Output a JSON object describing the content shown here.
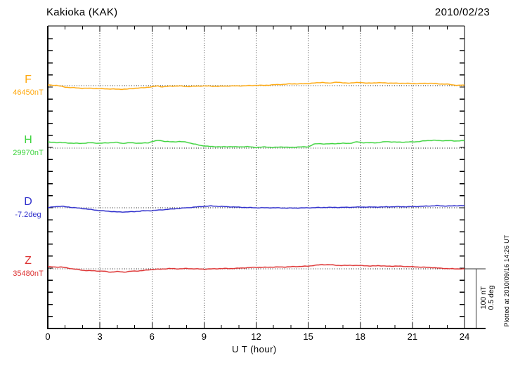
{
  "header": {
    "title": "Kakioka (KAK)",
    "date": "2010/02/23"
  },
  "axis": {
    "x_label": "U T (hour)",
    "x_ticks": [
      "0",
      "3",
      "6",
      "9",
      "12",
      "15",
      "18",
      "21",
      "24"
    ],
    "x_min": 0,
    "x_max": 24
  },
  "scale_bar": {
    "line1": "100 nT",
    "line2": "0.5 deg"
  },
  "footer_note": "Plotted at 2010/09/16 14:26 UT",
  "chart_data": {
    "type": "line",
    "title": "Kakioka (KAK) geomagnetic field variations 2010/02/23",
    "xlabel": "U T (hour)",
    "x_range": [
      0,
      24
    ],
    "grid": "dotted vertical gridlines every 3 hours; dotted horizontal baseline per channel",
    "legend_position": "left-of-plot channel labels",
    "scale": {
      "nT_per_division": 100,
      "deg_per_division": 0.5
    },
    "series": [
      {
        "name": "F",
        "label": "F",
        "unit": "nT",
        "baseline_label": "46450nT",
        "baseline_value": 46450,
        "color": "#ffaa11",
        "points": [
          [
            0,
            1
          ],
          [
            0.5,
            0.5
          ],
          [
            1,
            -2.5
          ],
          [
            1.5,
            -3.5
          ],
          [
            2,
            -4.5
          ],
          [
            2.5,
            -4.5
          ],
          [
            3,
            -5
          ],
          [
            3.5,
            -5.5
          ],
          [
            4,
            -6
          ],
          [
            4.5,
            -6
          ],
          [
            5,
            -4.5
          ],
          [
            5.5,
            -3.5
          ],
          [
            6,
            -2
          ],
          [
            6.3,
            -0.5
          ],
          [
            6.6,
            -2
          ],
          [
            7,
            -1
          ],
          [
            7.5,
            -0.5
          ],
          [
            8,
            -1.5
          ],
          [
            8.5,
            -1
          ],
          [
            9,
            -0.5
          ],
          [
            9.5,
            -1
          ],
          [
            10,
            -1
          ],
          [
            10.5,
            -0.5
          ],
          [
            11,
            -0.5
          ],
          [
            11.5,
            0
          ],
          [
            12,
            0.5
          ],
          [
            12.5,
            0.5
          ],
          [
            13,
            1.5
          ],
          [
            13.5,
            2
          ],
          [
            14,
            3
          ],
          [
            14.5,
            3
          ],
          [
            15,
            3.5
          ],
          [
            15.4,
            4.5
          ],
          [
            15.8,
            5.5
          ],
          [
            16.2,
            4
          ],
          [
            16.6,
            6
          ],
          [
            17,
            4.5
          ],
          [
            17.5,
            4.5
          ],
          [
            18,
            5.5
          ],
          [
            18.4,
            4
          ],
          [
            19,
            5
          ],
          [
            19.5,
            4.5
          ],
          [
            20,
            4
          ],
          [
            20.5,
            4
          ],
          [
            21,
            3.5
          ],
          [
            21.5,
            3.5
          ],
          [
            22,
            4
          ],
          [
            22.5,
            3
          ],
          [
            23,
            2.5
          ],
          [
            23.4,
            1
          ],
          [
            23.7,
            0.5
          ],
          [
            24,
            1
          ]
        ]
      },
      {
        "name": "H",
        "label": "H",
        "unit": "nT",
        "baseline_label": "29970nT",
        "baseline_value": 29970,
        "color": "#3fd43f",
        "points": [
          [
            0,
            10
          ],
          [
            0.5,
            9.5
          ],
          [
            1,
            9
          ],
          [
            1.5,
            8
          ],
          [
            2,
            8
          ],
          [
            2.5,
            9
          ],
          [
            3,
            8
          ],
          [
            3.5,
            9
          ],
          [
            4,
            9.5
          ],
          [
            4.3,
            8
          ],
          [
            4.8,
            9
          ],
          [
            5.3,
            8
          ],
          [
            5.8,
            9
          ],
          [
            6,
            11
          ],
          [
            6.4,
            13
          ],
          [
            6.8,
            11
          ],
          [
            7.2,
            10.5
          ],
          [
            7.6,
            11
          ],
          [
            8,
            10
          ],
          [
            8.4,
            7
          ],
          [
            8.8,
            4.5
          ],
          [
            9.2,
            3
          ],
          [
            9.6,
            2.5
          ],
          [
            10,
            2
          ],
          [
            10.5,
            2.5
          ],
          [
            11,
            2
          ],
          [
            11.5,
            2.5
          ],
          [
            12,
            1
          ],
          [
            12.5,
            2
          ],
          [
            13,
            1
          ],
          [
            13.5,
            2
          ],
          [
            14,
            1
          ],
          [
            14.5,
            2
          ],
          [
            15,
            2
          ],
          [
            15.3,
            6.5
          ],
          [
            15.6,
            7.5
          ],
          [
            16,
            7
          ],
          [
            16.5,
            7.5
          ],
          [
            17,
            8
          ],
          [
            17.4,
            8
          ],
          [
            17.8,
            10.5
          ],
          [
            18.2,
            9
          ],
          [
            18.6,
            9
          ],
          [
            19,
            9
          ],
          [
            19.5,
            11
          ],
          [
            20,
            10
          ],
          [
            20.5,
            10
          ],
          [
            21,
            10.5
          ],
          [
            21.4,
            11
          ],
          [
            21.8,
            12.5
          ],
          [
            22.2,
            13
          ],
          [
            22.6,
            12.5
          ],
          [
            23,
            12.5
          ],
          [
            23.5,
            12
          ],
          [
            24,
            12.5
          ]
        ]
      },
      {
        "name": "D",
        "label": "D",
        "unit": "deg",
        "baseline_label": "-7.2deg",
        "baseline_value": -7.2,
        "color": "#3030cc",
        "points": [
          [
            0,
            0
          ],
          [
            0.4,
            0.01
          ],
          [
            0.8,
            0.012
          ],
          [
            1.2,
            0.006
          ],
          [
            1.6,
            0
          ],
          [
            2,
            -0.006
          ],
          [
            2.5,
            -0.015
          ],
          [
            3,
            -0.024
          ],
          [
            3.5,
            -0.029
          ],
          [
            4,
            -0.035
          ],
          [
            4.5,
            -0.035
          ],
          [
            5,
            -0.032
          ],
          [
            5.5,
            -0.026
          ],
          [
            6,
            -0.024
          ],
          [
            6.5,
            -0.018
          ],
          [
            7,
            -0.012
          ],
          [
            7.5,
            -0.006
          ],
          [
            8,
            0
          ],
          [
            8.5,
            0.006
          ],
          [
            9,
            0.012
          ],
          [
            9.4,
            0.015
          ],
          [
            9.8,
            0.012
          ],
          [
            10.3,
            0.009
          ],
          [
            10.8,
            0.006
          ],
          [
            11.3,
            0.003
          ],
          [
            12,
            0
          ],
          [
            13,
            0
          ],
          [
            14,
            -0.003
          ],
          [
            15,
            0
          ],
          [
            16,
            0.003
          ],
          [
            17,
            0.003
          ],
          [
            18,
            0.006
          ],
          [
            19,
            0.006
          ],
          [
            20,
            0.009
          ],
          [
            20.5,
            0.009
          ],
          [
            21,
            0.009
          ],
          [
            21.5,
            0.012
          ],
          [
            22,
            0.015
          ],
          [
            22.4,
            0.018
          ],
          [
            22.8,
            0.015
          ],
          [
            23.2,
            0.015
          ],
          [
            23.6,
            0.018
          ],
          [
            24,
            0.018
          ]
        ]
      },
      {
        "name": "Z",
        "label": "Z",
        "unit": "nT",
        "baseline_label": "35480nT",
        "baseline_value": 35480,
        "color": "#dd3333",
        "points": [
          [
            0,
            3.5
          ],
          [
            0.4,
            3
          ],
          [
            0.8,
            3
          ],
          [
            1.2,
            1
          ],
          [
            1.6,
            -0.5
          ],
          [
            2,
            -2.5
          ],
          [
            2.4,
            -3
          ],
          [
            2.8,
            -3.5
          ],
          [
            3.2,
            -4
          ],
          [
            3.6,
            -5.5
          ],
          [
            4,
            -4.5
          ],
          [
            4.4,
            -5.5
          ],
          [
            4.8,
            -4
          ],
          [
            5.2,
            -3.5
          ],
          [
            5.6,
            -2.5
          ],
          [
            6,
            -1
          ],
          [
            6.5,
            -0.5
          ],
          [
            7,
            0.5
          ],
          [
            7.5,
            0
          ],
          [
            8,
            0.5
          ],
          [
            8.5,
            0
          ],
          [
            9,
            -0.5
          ],
          [
            9.5,
            0
          ],
          [
            10,
            0.5
          ],
          [
            10.5,
            0.5
          ],
          [
            11,
            1
          ],
          [
            11.5,
            2
          ],
          [
            12,
            2.5
          ],
          [
            12.5,
            2.5
          ],
          [
            13,
            3
          ],
          [
            13.5,
            3
          ],
          [
            14,
            3.5
          ],
          [
            14.5,
            4
          ],
          [
            15,
            4.5
          ],
          [
            15.4,
            6
          ],
          [
            15.8,
            7
          ],
          [
            16.2,
            7
          ],
          [
            16.6,
            6
          ],
          [
            17,
            5.5
          ],
          [
            17.4,
            6
          ],
          [
            17.8,
            5.5
          ],
          [
            18.2,
            5.5
          ],
          [
            18.6,
            4.5
          ],
          [
            19,
            5.5
          ],
          [
            19.4,
            4.5
          ],
          [
            19.8,
            4.5
          ],
          [
            20.2,
            4.5
          ],
          [
            20.6,
            4
          ],
          [
            21,
            3.5
          ],
          [
            21.4,
            3
          ],
          [
            21.8,
            2.5
          ],
          [
            22.2,
            2
          ],
          [
            22.6,
            1
          ],
          [
            23,
            0.5
          ],
          [
            23.4,
            0
          ],
          [
            23.7,
            0
          ],
          [
            24,
            0
          ]
        ]
      }
    ]
  }
}
